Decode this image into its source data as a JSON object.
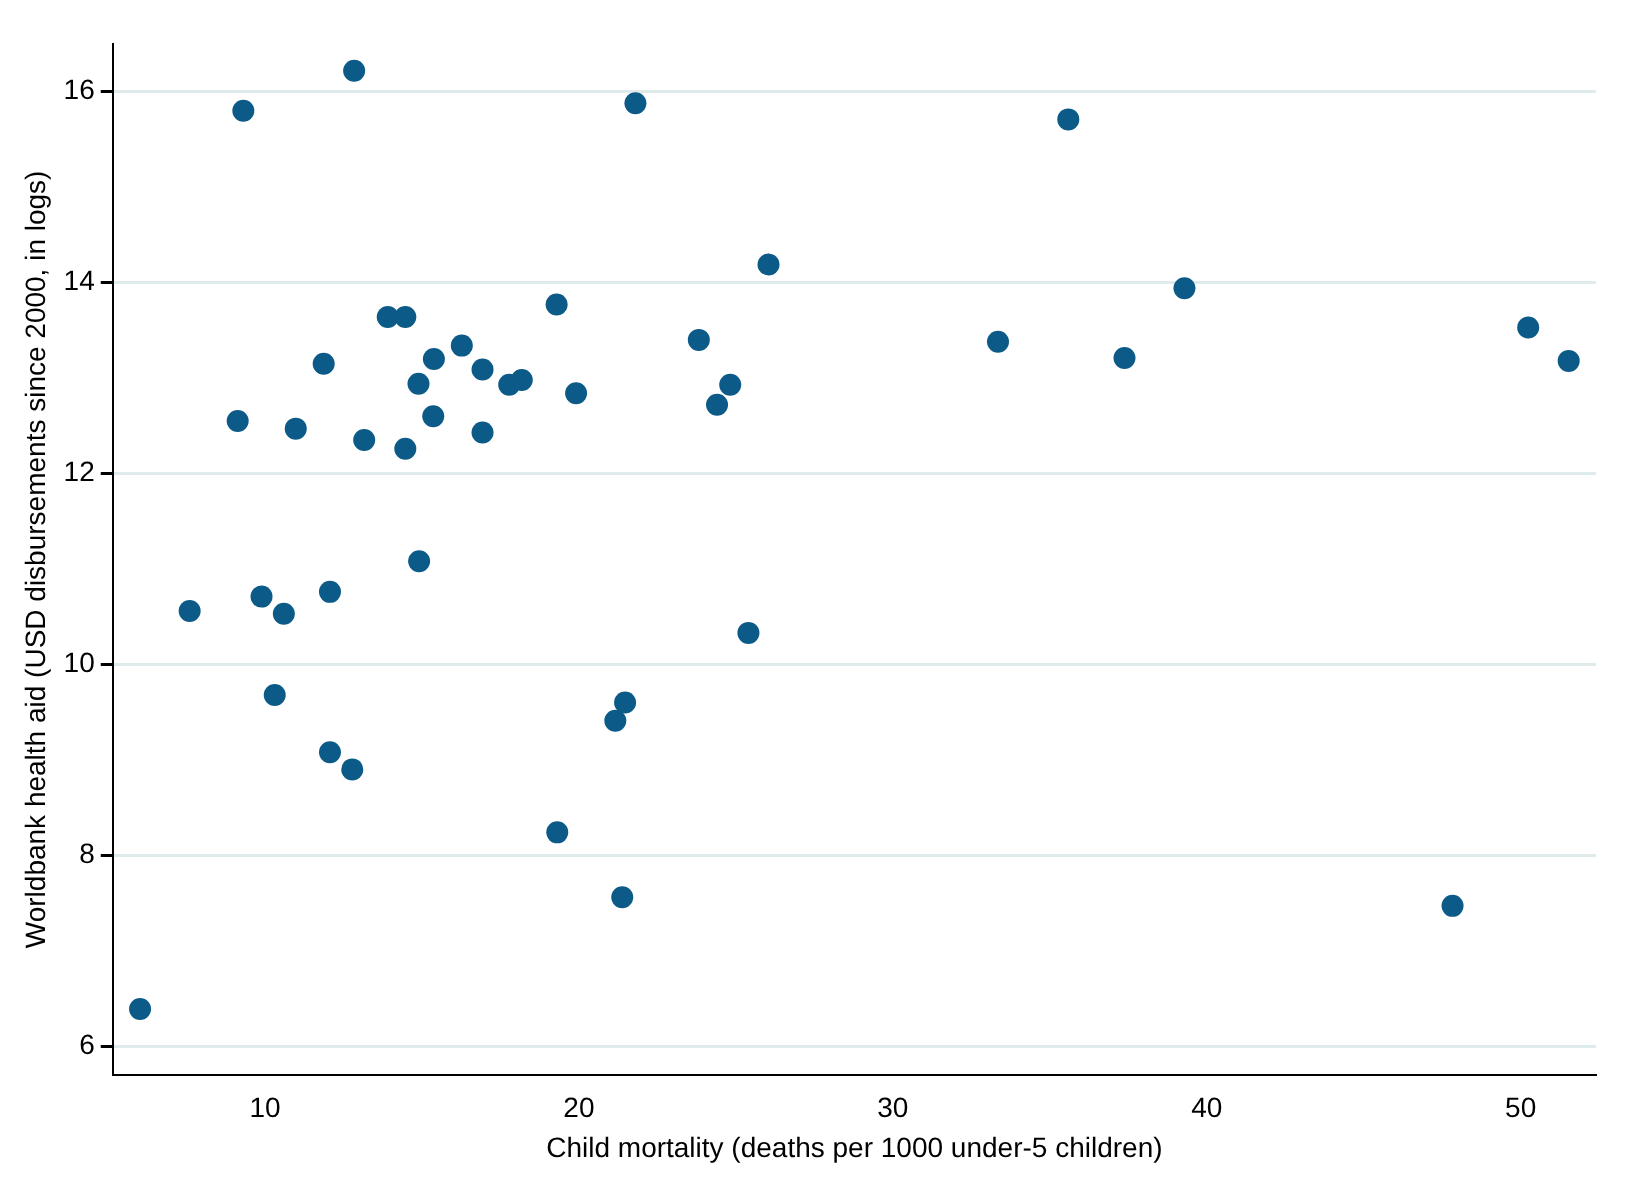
{
  "chart_data": {
    "type": "scatter",
    "xlabel": "Child mortality (deaths per 1000 under-5 children)",
    "ylabel": "Worldbank health aid (USD disbursements since 2000, in logs)",
    "xlim": [
      5.15,
      52.4
    ],
    "ylim": [
      5.7,
      16.5
    ],
    "xticks": [
      10,
      20,
      30,
      40,
      50
    ],
    "yticks": [
      6,
      8,
      10,
      12,
      14,
      16
    ],
    "grid": "y",
    "legend": false,
    "marker": "circle",
    "series": [
      {
        "color": "#0b5a87",
        "x": [
          12.84,
          9.31,
          21.8,
          26.04,
          13.91,
          14.47,
          19.29,
          23.82,
          11.87,
          15.38,
          16.27,
          16.93,
          14.89,
          17.78,
          18.18,
          19.91,
          24.82,
          24.4,
          9.13,
          10.98,
          15.36,
          13.16,
          14.47,
          16.93,
          14.91,
          7.6,
          9.89,
          10.6,
          12.07,
          25.4,
          10.31,
          21.47,
          21.16,
          12.07,
          12.78,
          19.31,
          21.38,
          6.02,
          35.59,
          33.35,
          37.38,
          39.29,
          50.24,
          51.53,
          47.83
        ],
        "values": [
          16.22,
          15.8,
          15.88,
          14.19,
          13.64,
          13.64,
          13.77,
          13.4,
          13.15,
          13.2,
          13.34,
          13.09,
          12.94,
          12.93,
          12.98,
          12.84,
          12.93,
          12.72,
          12.55,
          12.47,
          12.6,
          12.35,
          12.26,
          12.43,
          11.08,
          10.56,
          10.71,
          10.53,
          10.76,
          10.33,
          9.68,
          9.6,
          9.41,
          9.08,
          8.9,
          8.24,
          7.56,
          6.39,
          15.71,
          13.38,
          13.21,
          13.94,
          13.53,
          13.18,
          7.47
        ]
      }
    ]
  }
}
